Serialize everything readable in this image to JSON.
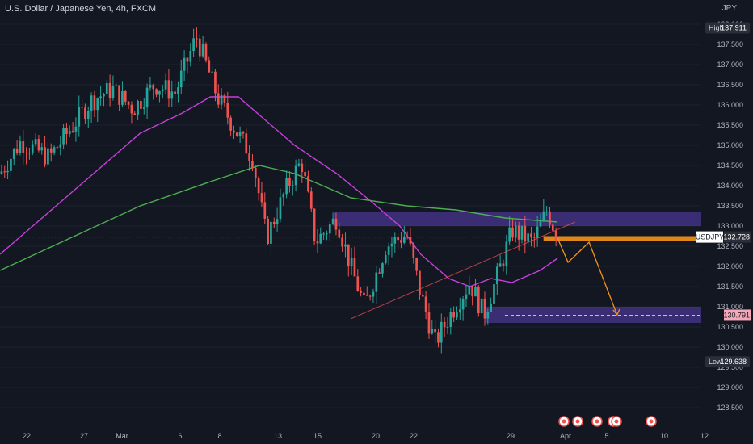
{
  "header": {
    "title": "U.S. Dollar / Japanese Yen, 4h, FXCM",
    "currency": "JPY"
  },
  "colors": {
    "background": "#131722",
    "up": "#26a69a",
    "down": "#ef5350",
    "ma_fast": "#c73fdc",
    "ma_slow": "#4caf50",
    "zone": "#5b3fb6",
    "orange": "#f7931a",
    "grid": "#1e222d"
  },
  "chart_data": {
    "type": "candlestick",
    "symbol": "USDJPY",
    "ylim": [
      128.2,
      138.3
    ],
    "y_ticks": [
      "138.000",
      "137.500",
      "137.000",
      "136.500",
      "136.000",
      "135.500",
      "135.000",
      "134.500",
      "134.000",
      "133.500",
      "133.000",
      "132.500",
      "132.000",
      "131.500",
      "131.000",
      "130.500",
      "130.000",
      "129.500",
      "129.000",
      "128.500"
    ],
    "x_ticks": [
      "22",
      "27",
      "Mar",
      "6",
      "8",
      "13",
      "15",
      "20",
      "22",
      "29",
      "Apr",
      "5",
      "10",
      "12"
    ],
    "markers": [
      {
        "label": "High",
        "value": "137.911",
        "y": 137.911
      },
      {
        "label": "Low",
        "value": "129.638",
        "y": 129.638
      }
    ],
    "last_price": {
      "label": "USDJPY",
      "value": "132.728",
      "y": 132.728
    },
    "target_price": {
      "value": "130.791",
      "y": 130.791
    },
    "zones": [
      {
        "name": "resistance-zone",
        "from": 133.0,
        "to": 133.35
      },
      {
        "name": "support-zone",
        "from": 130.6,
        "to": 131.0
      }
    ],
    "candle_anchors": [
      {
        "t": 0,
        "p": 134.3
      },
      {
        "t": 0.03,
        "p": 135.1
      },
      {
        "t": 0.07,
        "p": 134.7
      },
      {
        "t": 0.1,
        "p": 135.4
      },
      {
        "t": 0.13,
        "p": 136.1
      },
      {
        "t": 0.16,
        "p": 136.4
      },
      {
        "t": 0.19,
        "p": 135.9
      },
      {
        "t": 0.22,
        "p": 136.5
      },
      {
        "t": 0.25,
        "p": 136.3
      },
      {
        "t": 0.28,
        "p": 137.7
      },
      {
        "t": 0.31,
        "p": 136.2
      },
      {
        "t": 0.335,
        "p": 135.4
      },
      {
        "t": 0.36,
        "p": 134.7
      },
      {
        "t": 0.38,
        "p": 132.7
      },
      {
        "t": 0.41,
        "p": 134.0
      },
      {
        "t": 0.43,
        "p": 134.6
      },
      {
        "t": 0.45,
        "p": 132.6
      },
      {
        "t": 0.48,
        "p": 133.2
      },
      {
        "t": 0.5,
        "p": 132.0
      },
      {
        "t": 0.52,
        "p": 131.0
      },
      {
        "t": 0.55,
        "p": 132.5
      },
      {
        "t": 0.58,
        "p": 132.8
      },
      {
        "t": 0.6,
        "p": 131.3
      },
      {
        "t": 0.62,
        "p": 130.1
      },
      {
        "t": 0.645,
        "p": 130.9
      },
      {
        "t": 0.67,
        "p": 131.6
      },
      {
        "t": 0.69,
        "p": 130.8
      },
      {
        "t": 0.71,
        "p": 131.8
      },
      {
        "t": 0.73,
        "p": 132.9
      },
      {
        "t": 0.76,
        "p": 132.6
      },
      {
        "t": 0.78,
        "p": 133.4
      },
      {
        "t": 0.795,
        "p": 132.73
      }
    ],
    "ma_fast": [
      {
        "t": 0,
        "p": 132.3
      },
      {
        "t": 0.1,
        "p": 133.8
      },
      {
        "t": 0.2,
        "p": 135.3
      },
      {
        "t": 0.26,
        "p": 135.8
      },
      {
        "t": 0.3,
        "p": 136.2
      },
      {
        "t": 0.34,
        "p": 136.2
      },
      {
        "t": 0.38,
        "p": 135.6
      },
      {
        "t": 0.42,
        "p": 135.0
      },
      {
        "t": 0.48,
        "p": 134.3
      },
      {
        "t": 0.53,
        "p": 133.6
      },
      {
        "t": 0.57,
        "p": 133.0
      },
      {
        "t": 0.6,
        "p": 132.3
      },
      {
        "t": 0.64,
        "p": 131.7
      },
      {
        "t": 0.67,
        "p": 131.5
      },
      {
        "t": 0.7,
        "p": 131.7
      },
      {
        "t": 0.73,
        "p": 131.6
      },
      {
        "t": 0.77,
        "p": 131.9
      },
      {
        "t": 0.795,
        "p": 132.2
      }
    ],
    "ma_slow": [
      {
        "t": 0,
        "p": 131.9
      },
      {
        "t": 0.1,
        "p": 132.7
      },
      {
        "t": 0.2,
        "p": 133.5
      },
      {
        "t": 0.3,
        "p": 134.1
      },
      {
        "t": 0.37,
        "p": 134.5
      },
      {
        "t": 0.42,
        "p": 134.3
      },
      {
        "t": 0.5,
        "p": 133.7
      },
      {
        "t": 0.58,
        "p": 133.5
      },
      {
        "t": 0.65,
        "p": 133.4
      },
      {
        "t": 0.72,
        "p": 133.2
      },
      {
        "t": 0.795,
        "p": 133.1
      }
    ],
    "trendline": [
      {
        "t": 0.5,
        "p": 130.7
      },
      {
        "t": 0.82,
        "p": 133.1
      }
    ],
    "projection": [
      {
        "t": 0.795,
        "p": 132.7
      },
      {
        "t": 0.81,
        "p": 132.1
      },
      {
        "t": 0.84,
        "p": 132.6
      },
      {
        "t": 0.88,
        "p": 130.8
      }
    ]
  }
}
